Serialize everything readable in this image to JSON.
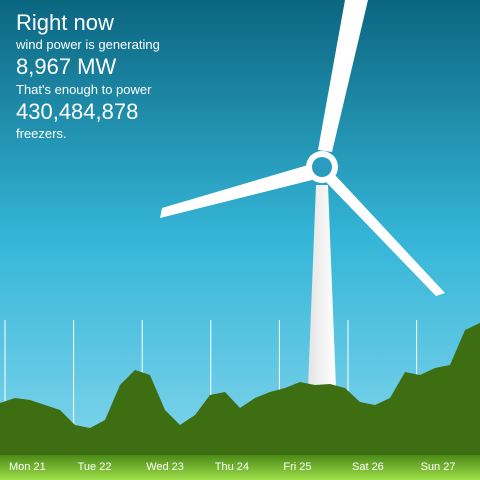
{
  "header": {
    "title": "Right now",
    "line1": "wind power is generating",
    "power": "8,967 MW",
    "line2": "That's enough to power",
    "count": "430,484,878",
    "line3": "freezers."
  },
  "chart_data": {
    "type": "area",
    "color": "#3d6f12",
    "x_labels": [
      "Mon 21",
      "Tue 22",
      "Wed 23",
      "Thu 24",
      "Fri 25",
      "Sat 26",
      "Sun 27"
    ],
    "values": [
      52,
      57,
      55,
      50,
      45,
      30,
      27,
      35,
      70,
      85,
      80,
      45,
      30,
      40,
      60,
      63,
      47,
      57,
      63,
      67,
      73,
      70,
      71,
      67,
      53,
      50,
      57,
      83,
      80,
      87,
      90,
      125,
      132
    ],
    "ylim": [
      0,
      135
    ]
  }
}
